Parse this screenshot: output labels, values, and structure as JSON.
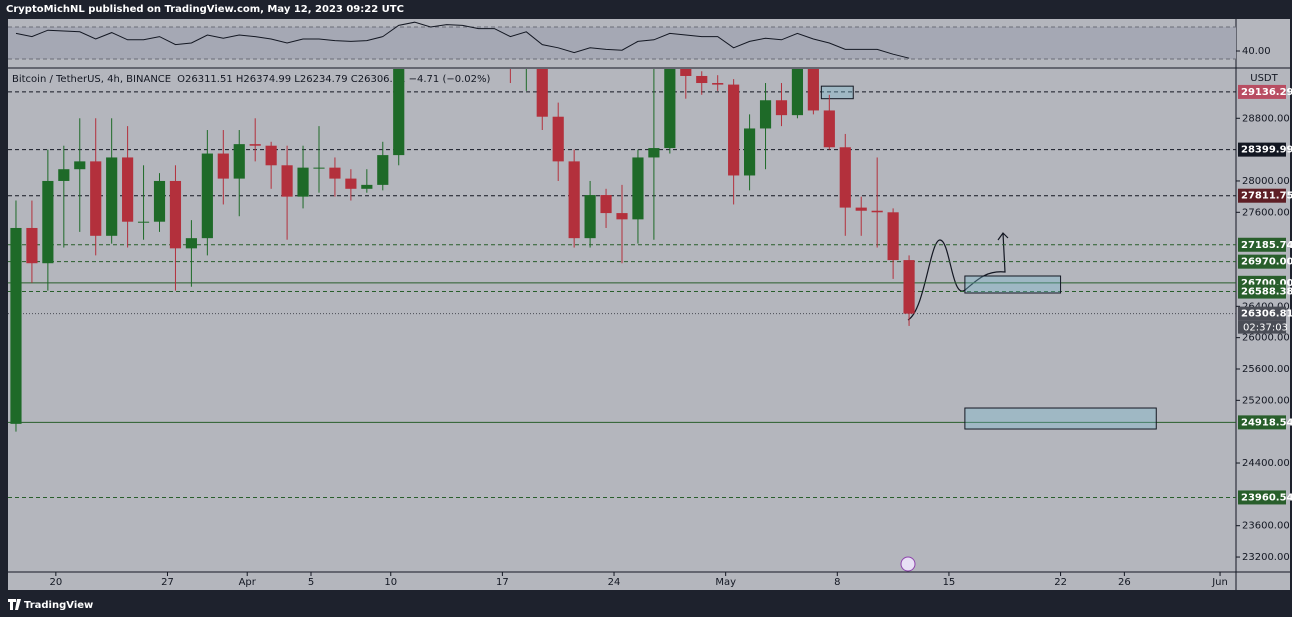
{
  "header": {
    "title": "CryptoMichNL published on TradingView.com, May 12, 2023 09:22 UTC"
  },
  "footer": {
    "brand": "TradingView"
  },
  "chart_data": [
    {
      "type": "line",
      "name": "rsi",
      "x": [
        "2023-03-17",
        "2023-03-18",
        "2023-03-19",
        "2023-03-20",
        "2023-03-21",
        "2023-03-22",
        "2023-03-23",
        "2023-03-24",
        "2023-03-25",
        "2023-03-26",
        "2023-03-27",
        "2023-03-28",
        "2023-03-29",
        "2023-03-30",
        "2023-03-31",
        "2023-04-01",
        "2023-04-02",
        "2023-04-03",
        "2023-04-04",
        "2023-04-05",
        "2023-04-06",
        "2023-04-07",
        "2023-04-08",
        "2023-04-09",
        "2023-04-10",
        "2023-04-11",
        "2023-04-12",
        "2023-04-13",
        "2023-04-14",
        "2023-04-15",
        "2023-04-16",
        "2023-04-17",
        "2023-04-18",
        "2023-04-19",
        "2023-04-20",
        "2023-04-21",
        "2023-04-22",
        "2023-04-23",
        "2023-04-24",
        "2023-04-25",
        "2023-04-26",
        "2023-04-27",
        "2023-04-28",
        "2023-04-29",
        "2023-04-30",
        "2023-05-01",
        "2023-05-02",
        "2023-05-03",
        "2023-05-04",
        "2023-05-05",
        "2023-05-06",
        "2023-05-07",
        "2023-05-08",
        "2023-05-09",
        "2023-05-10",
        "2023-05-11",
        "2023-05-12"
      ],
      "values": [
        62,
        58,
        66,
        65,
        64,
        55,
        63,
        54,
        54,
        58,
        48,
        50,
        60,
        56,
        60,
        58,
        55,
        50,
        55,
        55,
        53,
        52,
        53,
        58,
        72,
        76,
        70,
        73,
        72,
        68,
        68,
        58,
        64,
        48,
        44,
        38,
        44,
        42,
        41,
        52,
        54,
        62,
        60,
        58,
        58,
        44,
        52,
        56,
        54,
        62,
        55,
        50,
        42,
        42,
        42,
        36,
        31
      ],
      "color": "#131722",
      "ylim": [
        20,
        80
      ],
      "yticks": [
        {
          "value": 40,
          "label": "40.00"
        }
      ],
      "bands": [
        30,
        70
      ],
      "xlim": [
        "2023-03-17",
        "2023-06-02"
      ]
    },
    {
      "type": "candlestick",
      "symbol": "Bitcoin / TetherUS, 4h, BINANCE",
      "ohlc_text": "O26311.51 H26374.99 L26234.79 C26306.81 −4.71 (−0.02%)",
      "currency": "USDT",
      "countdown": "02:37:03",
      "x": [
        "2023-03-17",
        "2023-03-18",
        "2023-03-19",
        "2023-03-20",
        "2023-03-21",
        "2023-03-22",
        "2023-03-23",
        "2023-03-24",
        "2023-03-25",
        "2023-03-26",
        "2023-03-27",
        "2023-03-28",
        "2023-03-29",
        "2023-03-30",
        "2023-03-31",
        "2023-04-01",
        "2023-04-02",
        "2023-04-03",
        "2023-04-04",
        "2023-04-05",
        "2023-04-06",
        "2023-04-07",
        "2023-04-08",
        "2023-04-09",
        "2023-04-10",
        "2023-04-11",
        "2023-04-12",
        "2023-04-13",
        "2023-04-14",
        "2023-04-15",
        "2023-04-16",
        "2023-04-17",
        "2023-04-18",
        "2023-04-19",
        "2023-04-20",
        "2023-04-21",
        "2023-04-22",
        "2023-04-23",
        "2023-04-24",
        "2023-04-25",
        "2023-04-26",
        "2023-04-27",
        "2023-04-28",
        "2023-04-29",
        "2023-04-30",
        "2023-05-01",
        "2023-05-02",
        "2023-05-03",
        "2023-05-04",
        "2023-05-05",
        "2023-05-06",
        "2023-05-07",
        "2023-05-08",
        "2023-05-09",
        "2023-05-10",
        "2023-05-11",
        "2023-05-12"
      ],
      "open": [
        24900,
        27400,
        26950,
        28000,
        28150,
        28250,
        27300,
        28300,
        27480,
        27480,
        28000,
        27140,
        27270,
        28350,
        28030,
        28470,
        28450,
        28200,
        27800,
        28170,
        28170,
        28030,
        27900,
        27950,
        28330,
        29650,
        30200,
        29900,
        30400,
        30480,
        30320,
        30320,
        29440,
        30390,
        28820,
        28250,
        27270,
        27820,
        27590,
        27510,
        28300,
        28420,
        29480,
        29340,
        29250,
        29230,
        28070,
        28670,
        29030,
        28840,
        29530,
        28900,
        28430,
        27660,
        27620,
        27600,
        26990
      ],
      "high": [
        27750,
        27750,
        28400,
        28450,
        28800,
        28800,
        28800,
        28700,
        28200,
        28100,
        28200,
        27500,
        28650,
        28650,
        28650,
        28800,
        28500,
        28450,
        28450,
        28700,
        28300,
        28150,
        28150,
        28500,
        29800,
        30500,
        30400,
        30600,
        30800,
        30620,
        30550,
        30350,
        30480,
        30400,
        29000,
        28400,
        28000,
        27900,
        27950,
        28400,
        30000,
        29850,
        29500,
        29400,
        29350,
        29300,
        28850,
        29250,
        29250,
        29650,
        29800,
        29100,
        28600,
        27800,
        28300,
        27650,
        27050
      ],
      "low": [
        24800,
        26700,
        26600,
        27150,
        27350,
        27050,
        27200,
        27150,
        27250,
        27350,
        26600,
        26650,
        27050,
        27700,
        27550,
        28250,
        27900,
        27250,
        27650,
        27850,
        27800,
        27750,
        27850,
        27880,
        28200,
        29550,
        29600,
        29850,
        30000,
        30200,
        30150,
        29250,
        29150,
        28650,
        28000,
        27150,
        27150,
        27400,
        26950,
        27200,
        27250,
        28350,
        29050,
        29100,
        29150,
        27700,
        27880,
        28150,
        28700,
        28800,
        28850,
        28400,
        27300,
        27300,
        27150,
        26750,
        26150
      ],
      "close": [
        27400,
        26950,
        28000,
        28150,
        28250,
        27300,
        28300,
        27480,
        27480,
        28000,
        27140,
        27270,
        28350,
        28030,
        28470,
        28450,
        28200,
        27800,
        28170,
        28170,
        28030,
        27900,
        27950,
        28330,
        29650,
        30200,
        29900,
        30400,
        30480,
        30320,
        30320,
        29440,
        30390,
        28820,
        28250,
        27270,
        27820,
        27590,
        27510,
        28300,
        28420,
        29480,
        29340,
        29250,
        29230,
        28070,
        28670,
        29030,
        28840,
        29530,
        28900,
        28430,
        27660,
        27620,
        27600,
        26990,
        26306.81
      ],
      "up_color": "#1e6a28",
      "down_color": "#b3303c",
      "xlim": [
        "2023-03-17",
        "2023-06-02"
      ],
      "ylim": [
        23009,
        29429
      ],
      "xticks": [
        {
          "value": "2023-03-20",
          "label": "20"
        },
        {
          "value": "2023-03-27",
          "label": "27"
        },
        {
          "value": "2023-04-01",
          "label": "Apr"
        },
        {
          "value": "2023-04-05",
          "label": "5"
        },
        {
          "value": "2023-04-10",
          "label": "10"
        },
        {
          "value": "2023-04-17",
          "label": "17"
        },
        {
          "value": "2023-04-24",
          "label": "24"
        },
        {
          "value": "2023-05-01",
          "label": "May"
        },
        {
          "value": "2023-05-08",
          "label": "8"
        },
        {
          "value": "2023-05-15",
          "label": "15"
        },
        {
          "value": "2023-05-22",
          "label": "22"
        },
        {
          "value": "2023-05-26",
          "label": "26"
        },
        {
          "value": "2023-06-01",
          "label": "Jun"
        }
      ],
      "yticks": [
        {
          "value": 28800,
          "label": "28800.00"
        },
        {
          "value": 28000,
          "label": "28000.00"
        },
        {
          "value": 27600,
          "label": "27600.00"
        },
        {
          "value": 26400,
          "label": "26400.00"
        },
        {
          "value": 26000,
          "label": "26000.00"
        },
        {
          "value": 25600,
          "label": "25600.00"
        },
        {
          "value": 25200,
          "label": "25200.00"
        },
        {
          "value": 24400,
          "label": "24400.00"
        },
        {
          "value": 23600,
          "label": "23600.00"
        },
        {
          "value": 23200,
          "label": "23200.00"
        }
      ],
      "levels": [
        {
          "value": 29136.29,
          "color": "#b84d62",
          "line": "dashed"
        },
        {
          "value": 28399.99,
          "color": "#131722",
          "line": "dashed"
        },
        {
          "value": 27811.75,
          "color": "#5e1e25",
          "line": "dashed"
        },
        {
          "value": 27185.74,
          "color": "#285e2b",
          "line": "dashed"
        },
        {
          "value": 26970,
          "label": "26970.00",
          "color": "#285e2b",
          "line": "dashed"
        },
        {
          "value": 26700,
          "label": "26700.00",
          "color": "#285e2b",
          "line": "solid"
        },
        {
          "value": 26588.38,
          "color": "#285e2b",
          "line": "dashed"
        },
        {
          "value": 26306.81,
          "color": "#4a4d56",
          "line": "dotted"
        },
        {
          "value": 24918.54,
          "color": "#285e2b",
          "line": "solid"
        },
        {
          "value": 23960.54,
          "color": "#285e2b",
          "line": "dashed"
        }
      ],
      "zones": [
        {
          "x": [
            "2023-05-07",
            "2023-05-09"
          ],
          "y": [
            29050,
            29210
          ]
        },
        {
          "x": [
            "2023-05-16",
            "2023-05-22"
          ],
          "y": [
            26570,
            26787
          ]
        },
        {
          "x": [
            "2023-05-16",
            "2023-05-28"
          ],
          "y": [
            24834,
            25102
          ]
        }
      ]
    }
  ]
}
